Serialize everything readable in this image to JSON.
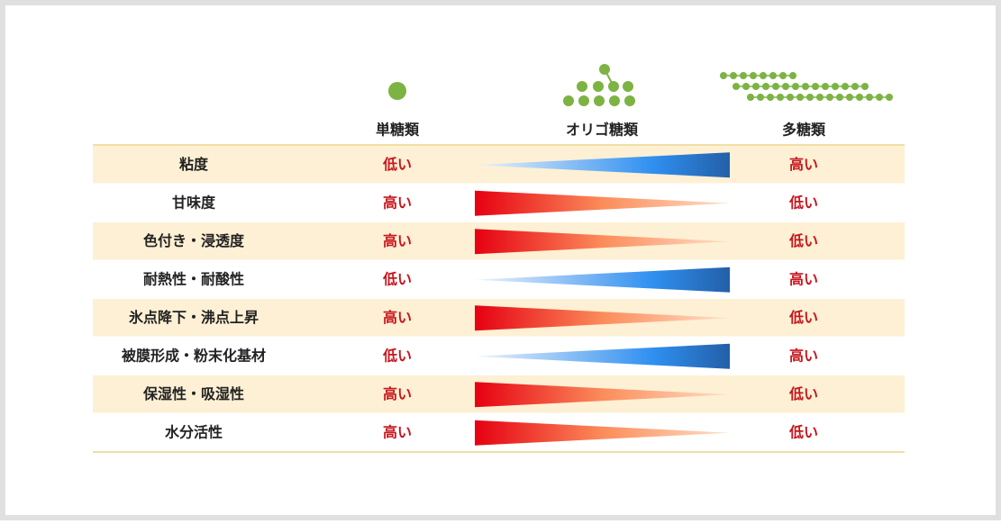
{
  "header": {
    "columns": [
      "単糖類",
      "オリゴ糖類",
      "多糖類"
    ]
  },
  "rows": [
    {
      "label": "粘度",
      "left": "低い",
      "right": "高い"
    },
    {
      "label": "甘味度",
      "left": "高い",
      "right": "低い"
    },
    {
      "label": "色付き・浸透度",
      "left": "高い",
      "right": "低い"
    },
    {
      "label": "耐熱性・耐酸性",
      "left": "低い",
      "right": "高い"
    },
    {
      "label": "氷点降下・沸点上昇",
      "left": "高い",
      "right": "低い"
    },
    {
      "label": "被膜形成・粉末化基材",
      "left": "低い",
      "right": "高い"
    },
    {
      "label": "保湿性・吸湿性",
      "left": "高い",
      "right": "低い"
    },
    {
      "label": "水分活性",
      "left": "高い",
      "right": "低い"
    }
  ]
}
